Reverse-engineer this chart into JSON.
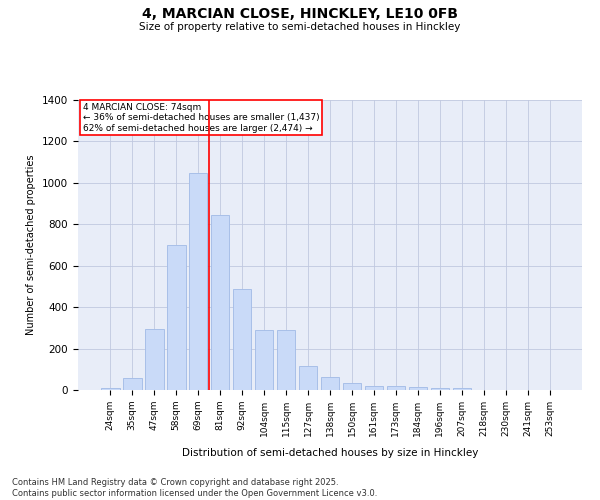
{
  "title": "4, MARCIAN CLOSE, HINCKLEY, LE10 0FB",
  "subtitle": "Size of property relative to semi-detached houses in Hinckley",
  "xlabel": "Distribution of semi-detached houses by size in Hinckley",
  "ylabel": "Number of semi-detached properties",
  "categories": [
    "24sqm",
    "35sqm",
    "47sqm",
    "58sqm",
    "69sqm",
    "81sqm",
    "92sqm",
    "104sqm",
    "115sqm",
    "127sqm",
    "138sqm",
    "150sqm",
    "161sqm",
    "173sqm",
    "184sqm",
    "196sqm",
    "207sqm",
    "218sqm",
    "230sqm",
    "241sqm",
    "253sqm"
  ],
  "values": [
    10,
    60,
    295,
    700,
    1050,
    845,
    490,
    290,
    290,
    115,
    65,
    35,
    20,
    20,
    15,
    10,
    10,
    0,
    0,
    0,
    0
  ],
  "bar_color": "#c9daf8",
  "bar_edge_color": "#a8bfe8",
  "grid_color": "#c0c8e0",
  "background_color": "#e8edf8",
  "red_line_x": 4.5,
  "annotation_line1": "4 MARCIAN CLOSE: 74sqm",
  "annotation_line2": "← 36% of semi-detached houses are smaller (1,437)",
  "annotation_line3": "62% of semi-detached houses are larger (2,474) →",
  "ylim": [
    0,
    1400
  ],
  "yticks": [
    0,
    200,
    400,
    600,
    800,
    1000,
    1200,
    1400
  ],
  "footer": "Contains HM Land Registry data © Crown copyright and database right 2025.\nContains public sector information licensed under the Open Government Licence v3.0."
}
